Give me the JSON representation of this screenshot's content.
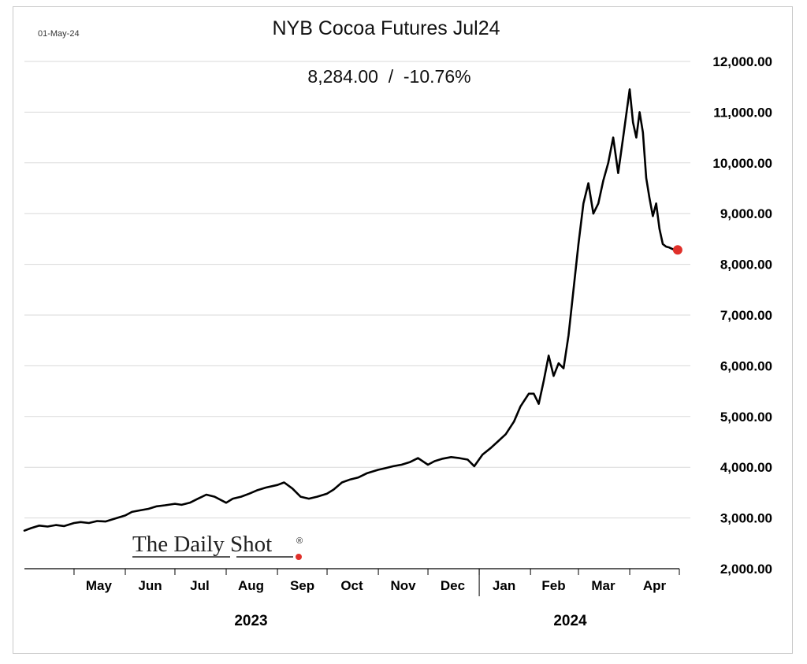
{
  "date_stamp": "01-May-24",
  "chart_data": {
    "type": "line",
    "title": "NYB Cocoa Futures Jul24",
    "subtitle": "8,284.00  /  -10.76%",
    "ylim": [
      2000,
      12000
    ],
    "yticks": [
      2000,
      3000,
      4000,
      5000,
      6000,
      7000,
      8000,
      9000,
      10000,
      11000,
      12000
    ],
    "ytick_labels": [
      "2,000.00",
      "3,000.00",
      "4,000.00",
      "5,000.00",
      "6,000.00",
      "7,000.00",
      "8,000.00",
      "9,000.00",
      "10,000.00",
      "11,000.00",
      "12,000.00"
    ],
    "y_axis_position": "right",
    "grid": true,
    "x_range": [
      "2023-04-01",
      "2024-05-01"
    ],
    "month_labels": [
      {
        "label": "May",
        "date": "2023-05-16"
      },
      {
        "label": "Jun",
        "date": "2023-06-16"
      },
      {
        "label": "Jul",
        "date": "2023-07-16"
      },
      {
        "label": "Aug",
        "date": "2023-08-16"
      },
      {
        "label": "Sep",
        "date": "2023-09-16"
      },
      {
        "label": "Oct",
        "date": "2023-10-16"
      },
      {
        "label": "Nov",
        "date": "2023-11-16"
      },
      {
        "label": "Dec",
        "date": "2023-12-16"
      },
      {
        "label": "Jan",
        "date": "2024-01-16"
      },
      {
        "label": "Feb",
        "date": "2024-02-15"
      },
      {
        "label": "Mar",
        "date": "2024-03-16"
      },
      {
        "label": "Apr",
        "date": "2024-04-16"
      }
    ],
    "year_labels": [
      {
        "label": "2023",
        "date": "2023-08-16"
      },
      {
        "label": "2024",
        "date": "2024-02-25"
      }
    ],
    "year_divider_date": "2024-01-01",
    "series": [
      {
        "color": "#000000",
        "x": [
          "2023-04-01",
          "2023-04-05",
          "2023-04-10",
          "2023-04-15",
          "2023-04-20",
          "2023-04-25",
          "2023-05-01",
          "2023-05-05",
          "2023-05-10",
          "2023-05-15",
          "2023-05-20",
          "2023-05-25",
          "2023-06-01",
          "2023-06-05",
          "2023-06-10",
          "2023-06-15",
          "2023-06-20",
          "2023-06-25",
          "2023-07-01",
          "2023-07-05",
          "2023-07-10",
          "2023-07-15",
          "2023-07-20",
          "2023-07-25",
          "2023-08-01",
          "2023-08-05",
          "2023-08-10",
          "2023-08-15",
          "2023-08-20",
          "2023-08-25",
          "2023-09-01",
          "2023-09-05",
          "2023-09-10",
          "2023-09-15",
          "2023-09-20",
          "2023-09-25",
          "2023-10-01",
          "2023-10-05",
          "2023-10-10",
          "2023-10-15",
          "2023-10-20",
          "2023-10-25",
          "2023-11-01",
          "2023-11-05",
          "2023-11-10",
          "2023-11-15",
          "2023-11-20",
          "2023-11-25",
          "2023-12-01",
          "2023-12-05",
          "2023-12-10",
          "2023-12-15",
          "2023-12-20",
          "2023-12-25",
          "2023-12-29",
          "2024-01-03",
          "2024-01-08",
          "2024-01-12",
          "2024-01-17",
          "2024-01-22",
          "2024-01-26",
          "2024-01-31",
          "2024-02-03",
          "2024-02-06",
          "2024-02-09",
          "2024-02-12",
          "2024-02-15",
          "2024-02-18",
          "2024-02-21",
          "2024-02-24",
          "2024-02-27",
          "2024-03-01",
          "2024-03-04",
          "2024-03-07",
          "2024-03-10",
          "2024-03-13",
          "2024-03-16",
          "2024-03-19",
          "2024-03-22",
          "2024-03-25",
          "2024-03-28",
          "2024-04-01",
          "2024-04-03",
          "2024-04-05",
          "2024-04-07",
          "2024-04-09",
          "2024-04-11",
          "2024-04-13",
          "2024-04-15",
          "2024-04-17",
          "2024-04-19",
          "2024-04-21",
          "2024-04-23",
          "2024-04-25",
          "2024-04-27",
          "2024-04-29",
          "2024-04-30"
        ],
        "y": [
          2750,
          2800,
          2850,
          2830,
          2860,
          2840,
          2900,
          2920,
          2900,
          2940,
          2930,
          2980,
          3050,
          3120,
          3150,
          3180,
          3230,
          3250,
          3280,
          3260,
          3300,
          3380,
          3460,
          3420,
          3300,
          3380,
          3420,
          3480,
          3550,
          3600,
          3650,
          3700,
          3580,
          3420,
          3380,
          3420,
          3480,
          3560,
          3700,
          3760,
          3800,
          3880,
          3950,
          3980,
          4020,
          4050,
          4100,
          4180,
          4050,
          4120,
          4170,
          4200,
          4180,
          4150,
          4020,
          4250,
          4380,
          4500,
          4650,
          4900,
          5200,
          5450,
          5450,
          5250,
          5700,
          6200,
          5800,
          6050,
          5950,
          6600,
          7500,
          8400,
          9200,
          9600,
          9000,
          9200,
          9650,
          10000,
          10500,
          9800,
          10500,
          11450,
          10800,
          10500,
          11000,
          10600,
          9700,
          9300,
          8950,
          9200,
          8700,
          8400,
          8350,
          8330,
          8300,
          8290,
          8284
        ]
      }
    ],
    "last_point": {
      "date": "2024-04-30",
      "value": 8284,
      "marker_color": "#e0302a"
    }
  },
  "logo": {
    "text": "The Daily Shot",
    "mark": "®",
    "dot_color": "#e0302a"
  }
}
